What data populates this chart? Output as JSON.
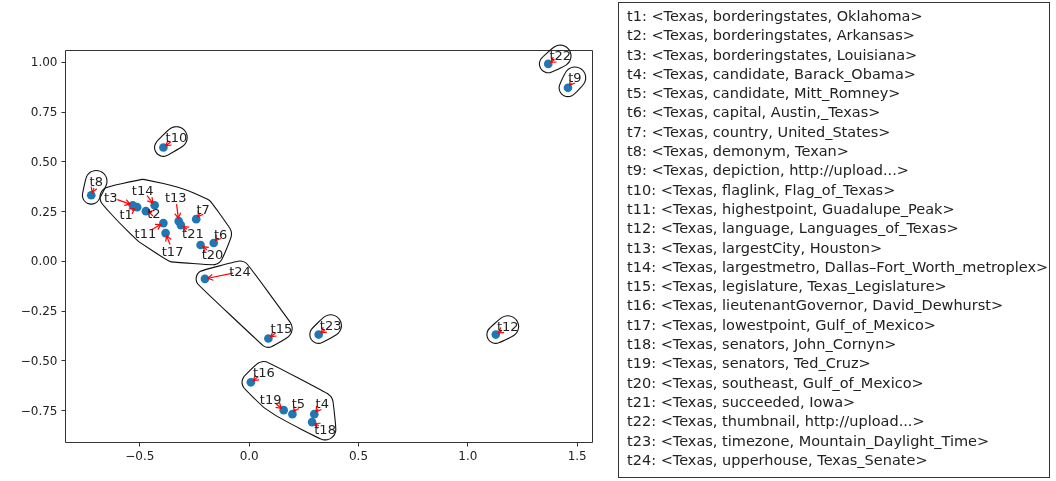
{
  "chart_data": {
    "type": "scatter",
    "marker": "circle",
    "grid": false,
    "xlim": [
      -0.84,
      1.57
    ],
    "ylim": [
      -0.91,
      1.06
    ],
    "xticks": [
      {
        "value": -0.5,
        "label": "−0.5"
      },
      {
        "value": 0,
        "label": "0.0"
      },
      {
        "value": 0.5,
        "label": "0.5"
      },
      {
        "value": 1,
        "label": "1.0"
      },
      {
        "value": 1.5,
        "label": "1.5"
      }
    ],
    "yticks": [
      {
        "value": -0.75,
        "label": "−0.75"
      },
      {
        "value": -0.5,
        "label": "−0.50"
      },
      {
        "value": -0.25,
        "label": "−0.25"
      },
      {
        "value": 0,
        "label": "0.00"
      },
      {
        "value": 0.25,
        "label": "0.25"
      },
      {
        "value": 0.5,
        "label": "0.50"
      },
      {
        "value": 0.75,
        "label": "0.75"
      },
      {
        "value": 1,
        "label": "1.00"
      }
    ],
    "series": [
      {
        "color": "#1f77b4",
        "x": [
          -0.51,
          -0.47,
          -0.53,
          0.3,
          0.2,
          -0.16,
          -0.24,
          -0.72,
          1.46,
          -0.39,
          -0.39,
          1.13,
          -0.32,
          -0.43,
          0.09,
          0.01,
          -0.38,
          0.29,
          0.16,
          -0.22,
          -0.31,
          1.37,
          0.32,
          -0.2
        ],
        "values": [
          0.27,
          0.25,
          0.28,
          -0.77,
          -0.77,
          0.09,
          0.21,
          0.33,
          0.87,
          0.57,
          0.19,
          -0.37,
          0.2,
          0.28,
          -0.39,
          -0.61,
          0.14,
          -0.81,
          -0.75,
          0.08,
          0.18,
          0.99,
          -0.37,
          -0.09
        ]
      }
    ],
    "annotations": [
      {
        "text": "t1",
        "x": -0.51,
        "y": 0.27
      },
      {
        "text": "t2",
        "x": -0.47,
        "y": 0.25
      },
      {
        "text": "t3",
        "x": -0.53,
        "y": 0.28
      },
      {
        "text": "t4",
        "x": 0.3,
        "y": -0.77
      },
      {
        "text": "t5",
        "x": 0.2,
        "y": -0.77
      },
      {
        "text": "t6",
        "x": -0.16,
        "y": 0.09
      },
      {
        "text": "t7",
        "x": -0.24,
        "y": 0.21
      },
      {
        "text": "t8",
        "x": -0.72,
        "y": 0.33
      },
      {
        "text": "t9",
        "x": 1.46,
        "y": 0.87
      },
      {
        "text": "t10",
        "x": -0.39,
        "y": 0.57
      },
      {
        "text": "t11",
        "x": -0.39,
        "y": 0.19
      },
      {
        "text": "t12",
        "x": 1.13,
        "y": -0.37
      },
      {
        "text": "t13",
        "x": -0.32,
        "y": 0.2
      },
      {
        "text": "t14",
        "x": -0.43,
        "y": 0.28
      },
      {
        "text": "t15",
        "x": 0.09,
        "y": -0.39
      },
      {
        "text": "t16",
        "x": 0.01,
        "y": -0.61
      },
      {
        "text": "t17",
        "x": -0.38,
        "y": 0.14
      },
      {
        "text": "t18",
        "x": 0.29,
        "y": -0.81
      },
      {
        "text": "t19",
        "x": 0.16,
        "y": -0.75
      },
      {
        "text": "t20",
        "x": -0.22,
        "y": 0.08
      },
      {
        "text": "t21",
        "x": -0.31,
        "y": 0.18
      },
      {
        "text": "t22",
        "x": 1.37,
        "y": 0.99
      },
      {
        "text": "t23",
        "x": 0.32,
        "y": -0.37
      },
      {
        "text": "t24",
        "x": -0.2,
        "y": -0.09
      },
      "t1: <Texas, borderingstates, Oklahoma>",
      "t2: <Texas, borderingstates, Arkansas>",
      "t3: <Texas, borderingstates, Louisiana>",
      "t4: <Texas, candidate, Barack_Obama>",
      "t5: <Texas, candidate, Mitt_Romney>",
      "t6: <Texas, capital, Austin,_Texas>",
      "t7: <Texas, country, United_States>",
      "t8: <Texas, demonym, Texan>",
      "t9: <Texas, depiction, http://upload...>",
      "t10: <Texas, flaglink, Flag_of_Texas>",
      "t11: <Texas, highestpoint, Guadalupe_Peak>",
      "t12: <Texas, language, Languages_of_Texas>",
      "t13: <Texas, largestCity, Houston>",
      "t14: <Texas, largestmetro, Dallas–Fort_Worth_metroplex>",
      "t15: <Texas, legislature, Texas_Legislature>",
      "t16: <Texas, lieutenantGovernor, David_Dewhurst>",
      "t17: <Texas, lowestpoint, Gulf_of_Mexico>",
      "t18: <Texas, senators, John_Cornyn>",
      "t19: <Texas, senators, Ted_Cruz>",
      "t20: <Texas, southeast, Gulf_of_Mexico>",
      "t21: <Texas, succeeded, Iowa>",
      "t22: <Texas, thumbnail, http://upload...>",
      "t23: <Texas, timezone, Mountain_Daylight_Time>",
      "t24: <Texas, upperhouse, Texas_Senate>"
    ]
  }
}
